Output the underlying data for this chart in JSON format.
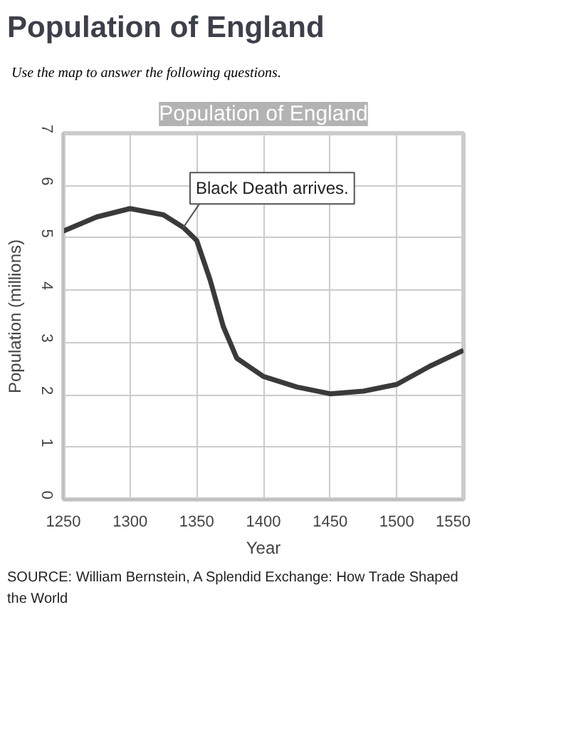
{
  "chart_data": {
    "type": "line",
    "title": "Population of England",
    "subtitle": "Use the map to answer the following questions.",
    "xlabel": "Year",
    "ylabel": "Population (millions)",
    "x": [
      1250,
      1275,
      1300,
      1325,
      1340,
      1350,
      1360,
      1370,
      1380,
      1400,
      1425,
      1450,
      1475,
      1500,
      1525,
      1550
    ],
    "series": [
      {
        "color": "#3a3a3a",
        "values": [
          5.13,
          5.4,
          5.56,
          5.44,
          5.2,
          4.95,
          4.2,
          3.3,
          2.7,
          2.35,
          2.15,
          2.02,
          2.07,
          2.2,
          2.55,
          2.85
        ]
      }
    ],
    "xlim": [
      1250,
      1550
    ],
    "ylim": [
      0,
      7
    ],
    "xticks": [
      1250,
      1300,
      1350,
      1400,
      1450,
      1500,
      1550
    ],
    "yticks": [
      0,
      1,
      2,
      3,
      4,
      5,
      6,
      7
    ],
    "grid": true,
    "line_style": "solid",
    "annotations": [
      "Population of England",
      {
        "text": "Black Death arrives.",
        "x": 1340,
        "y": 5.2
      },
      "SOURCE: William Bernstein, A Splendid Exchange: How Trade Shaped the World"
    ]
  }
}
